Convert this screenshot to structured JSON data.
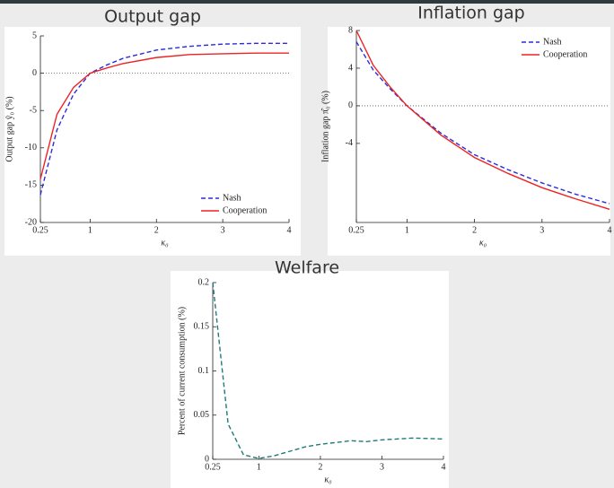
{
  "chart_data": [
    {
      "type": "line",
      "title": "Output gap",
      "xlabel": "κ₀",
      "ylabel": "Output gap ŷ₀ (%)",
      "x": [
        0.25,
        0.5,
        0.75,
        1,
        1.25,
        1.5,
        2,
        2.5,
        3,
        3.5,
        4
      ],
      "series": [
        {
          "name": "Nash",
          "color": "#2b2bdd",
          "line_style": "dashed",
          "values": [
            -16.3,
            -7.6,
            -2.8,
            0,
            1.1,
            2.0,
            3.1,
            3.6,
            3.9,
            4.0,
            4.0
          ]
        },
        {
          "name": "Cooperation",
          "color": "#ee2222",
          "line_style": "solid",
          "values": [
            -14.2,
            -5.5,
            -1.9,
            0,
            0.7,
            1.3,
            2.1,
            2.5,
            2.6,
            2.7,
            2.7
          ]
        }
      ],
      "xlim": [
        0.25,
        4
      ],
      "xticks": [
        0.25,
        1,
        2,
        3,
        4
      ],
      "ylim": [
        -20,
        5
      ],
      "yticks": [
        -20,
        -15,
        -10,
        -5,
        0,
        5
      ],
      "zero_line": true,
      "legend": "lower right"
    },
    {
      "type": "line",
      "title": "Inflation gap",
      "xlabel": "κ₀",
      "ylabel": "Inflation gap π̂₀ (%)",
      "x": [
        0.25,
        0.5,
        0.75,
        1,
        1.5,
        2,
        2.5,
        3,
        3.5,
        4
      ],
      "series": [
        {
          "name": "Nash",
          "color": "#2b2bdd",
          "line_style": "dashed",
          "values": [
            6.8,
            3.8,
            1.8,
            0,
            -2.9,
            -5.2,
            -6.8,
            -8.2,
            -9.4,
            -10.4
          ]
        },
        {
          "name": "Cooperation",
          "color": "#ee2222",
          "line_style": "solid",
          "values": [
            8,
            4.3,
            2.0,
            0,
            -3.1,
            -5.5,
            -7.2,
            -8.7,
            -9.9,
            -11.0
          ]
        }
      ],
      "xlim": [
        0.25,
        4
      ],
      "xticks": [
        0.25,
        1,
        2,
        3,
        4
      ],
      "ylim": [
        -12.4,
        8
      ],
      "yticks": [
        -4,
        0,
        4,
        8
      ],
      "zero_line": true,
      "legend": "upper right"
    },
    {
      "type": "line",
      "title": "Welfare",
      "xlabel": "κ₀",
      "ylabel": "Percent of current consumption (%)",
      "x": [
        0.25,
        0.5,
        0.75,
        1,
        1.25,
        1.5,
        1.75,
        2,
        2.5,
        2.75,
        3,
        3.5,
        4
      ],
      "series": [
        {
          "color": "#1f7a7a",
          "line_style": "dashed",
          "values": [
            0.2,
            0.04,
            0.005,
            0.001,
            0.004,
            0.009,
            0.014,
            0.017,
            0.021,
            0.02,
            0.022,
            0.024,
            0.023
          ]
        }
      ],
      "xlim": [
        0.25,
        4
      ],
      "xticks": [
        0.25,
        1,
        2,
        3,
        4
      ],
      "ylim": [
        0,
        0.2
      ],
      "yticks": [
        0,
        0.05,
        0.1,
        0.15,
        0.2
      ],
      "zero_line": false
    }
  ]
}
